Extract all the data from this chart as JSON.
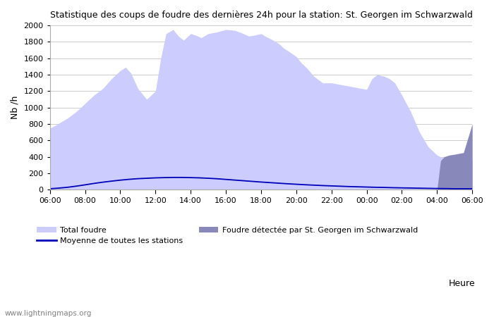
{
  "title": "Statistique des coups de foudre des dernières 24h pour la station: St. Georgen im Schwarzwald",
  "ylabel": "Nb /h",
  "xlabel": "Heure",
  "watermark": "www.lightningmaps.org",
  "ylim": [
    0,
    2000
  ],
  "x_labels": [
    "06:00",
    "08:00",
    "10:00",
    "12:00",
    "14:00",
    "16:00",
    "18:00",
    "20:00",
    "22:00",
    "00:00",
    "02:00",
    "04:00",
    "06:00"
  ],
  "color_total": "#ccccff",
  "color_station": "#8888bb",
  "color_moyenne": "#0000bb",
  "legend_total": "Total foudre",
  "legend_station": "Foudre détectée par St. Georgen im Schwarzwald",
  "legend_moyenne": "Moyenne de toutes les stations",
  "total_foudre_x": [
    0,
    0.3,
    0.6,
    1.0,
    1.5,
    2.0,
    2.5,
    3.0,
    3.5,
    4.0,
    4.3,
    4.6,
    5.0,
    5.5,
    6.0,
    6.3,
    6.6,
    7.0,
    7.3,
    7.6,
    8.0,
    8.3,
    8.6,
    9.0,
    9.5,
    10.0,
    10.5,
    11.0,
    11.3,
    11.6,
    12.0,
    12.3,
    12.6,
    13.0,
    13.3,
    13.6,
    14.0,
    14.3,
    14.6,
    15.0,
    15.5,
    16.0,
    16.5,
    17.0,
    17.5,
    18.0,
    18.3,
    18.6,
    19.0,
    19.3,
    19.6,
    20.0,
    20.5,
    21.0,
    21.5,
    22.0,
    22.3,
    22.6,
    23.0,
    23.5,
    24.0
  ],
  "total_foudre_y": [
    750,
    780,
    820,
    870,
    950,
    1050,
    1150,
    1230,
    1350,
    1450,
    1490,
    1420,
    1230,
    1100,
    1200,
    1600,
    1900,
    1950,
    1870,
    1820,
    1900,
    1880,
    1850,
    1900,
    1920,
    1950,
    1940,
    1900,
    1870,
    1880,
    1900,
    1860,
    1830,
    1780,
    1720,
    1680,
    1620,
    1540,
    1480,
    1380,
    1300,
    1300,
    1280,
    1260,
    1240,
    1220,
    1350,
    1400,
    1380,
    1350,
    1300,
    1150,
    950,
    700,
    520,
    420,
    390,
    360,
    355,
    355,
    350
  ],
  "station_foudre_x": [
    0,
    0.5,
    1.0,
    2.0,
    3.0,
    4.0,
    5.0,
    6.0,
    7.0,
    8.0,
    9.0,
    10.0,
    11.0,
    12.0,
    13.0,
    14.0,
    15.0,
    16.0,
    17.0,
    18.0,
    19.0,
    20.0,
    21.0,
    22.0,
    22.2,
    22.4,
    22.7,
    23.0,
    23.5,
    24.0
  ],
  "station_foudre_y": [
    0,
    0,
    0,
    0,
    0,
    0,
    0,
    0,
    0,
    0,
    0,
    0,
    0,
    0,
    0,
    0,
    0,
    0,
    0,
    0,
    0,
    0,
    0,
    0,
    350,
    400,
    420,
    430,
    450,
    800
  ],
  "moyenne_x": [
    0,
    0.5,
    1.0,
    1.5,
    2.0,
    2.5,
    3.0,
    3.5,
    4.0,
    4.5,
    5.0,
    5.5,
    6.0,
    6.5,
    7.0,
    7.5,
    8.0,
    8.5,
    9.0,
    9.5,
    10.0,
    10.5,
    11.0,
    11.5,
    12.0,
    12.5,
    13.0,
    13.5,
    14.0,
    14.5,
    15.0,
    15.5,
    16.0,
    16.5,
    17.0,
    17.5,
    18.0,
    18.5,
    19.0,
    19.5,
    20.0,
    20.5,
    21.0,
    21.5,
    22.0,
    22.5,
    23.0,
    23.5,
    24.0
  ],
  "moyenne_y": [
    10,
    18,
    28,
    42,
    58,
    75,
    90,
    103,
    115,
    125,
    133,
    138,
    143,
    146,
    148,
    148,
    146,
    143,
    138,
    132,
    124,
    116,
    108,
    100,
    92,
    85,
    78,
    71,
    65,
    59,
    54,
    49,
    45,
    41,
    37,
    34,
    31,
    28,
    26,
    23,
    21,
    19,
    17,
    15,
    13,
    12,
    10,
    10,
    10
  ]
}
